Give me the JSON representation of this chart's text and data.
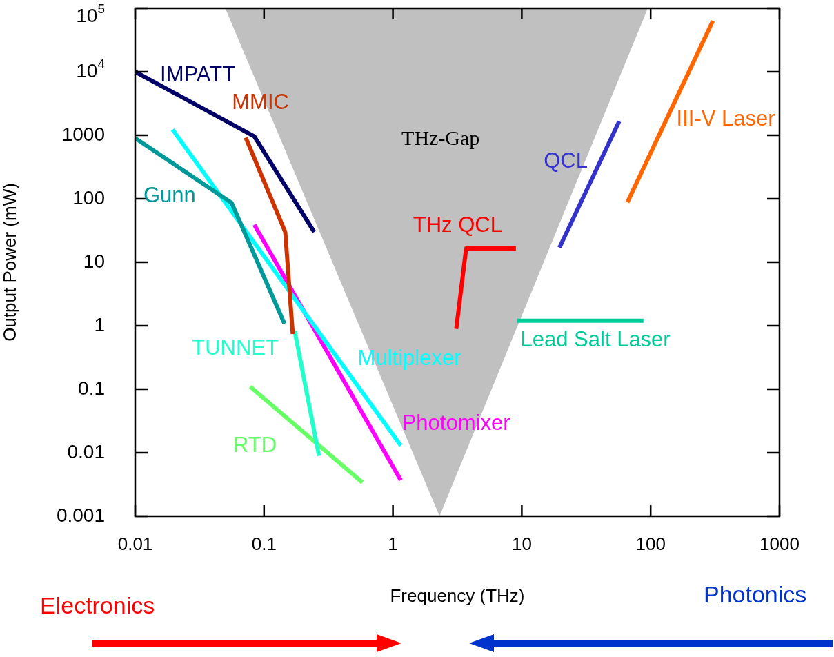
{
  "chart_data": {
    "type": "line",
    "xlabel": "Frequency (THz)",
    "ylabel": "Output Power (mW)",
    "log": "xy",
    "grid": false,
    "legend": false,
    "marker": "none",
    "line_style": "solid",
    "xlim": [
      0.01,
      1000
    ],
    "xticks": [
      0.01,
      0.1,
      1,
      10,
      100,
      1000
    ],
    "ylim": [
      0.001,
      100000
    ],
    "yticks": [
      0.001,
      0.01,
      0.1,
      1,
      10,
      100,
      1000,
      {
        "value": 10000,
        "label": "10$^{4}$"
      },
      {
        "value": 100000,
        "label": "10$^{5}$"
      }
    ],
    "series": [
      {
        "name": "THz-Gap",
        "type": "area",
        "color": "#c0c0c0",
        "x": [
          0.05,
          2.3,
          95
        ],
        "values": [
          100000,
          0.001,
          100000
        ]
      },
      {
        "name": "IMPATT",
        "type": "line",
        "color": "#000066",
        "x": [
          0.01,
          0.084,
          0.245
        ],
        "values": [
          10000,
          960,
          30
        ]
      },
      {
        "name": "MMIC",
        "type": "line",
        "color": "#cc3300",
        "x": [
          0.072,
          0.146,
          0.167
        ],
        "values": [
          920,
          30,
          0.74
        ]
      },
      {
        "name": "Gunn",
        "type": "line",
        "color": "#009999",
        "x": [
          0.01,
          0.056,
          0.144
        ],
        "values": [
          900,
          86,
          1.08
        ]
      },
      {
        "name": "Multiplexer",
        "type": "line",
        "color": "#00ffff",
        "x": [
          0.0195,
          1.15
        ],
        "values": [
          1230,
          0.013
        ]
      },
      {
        "name": "Photomixer",
        "type": "line",
        "color": "#ff00ff",
        "x": [
          0.084,
          1.15
        ],
        "values": [
          39,
          0.0037
        ]
      },
      {
        "name": "TUNNET",
        "type": "line",
        "color": "#22ffcc",
        "x": [
          0.173,
          0.267
        ],
        "values": [
          0.82,
          0.0089
        ]
      },
      {
        "name": "RTD",
        "type": "line",
        "color": "#66ff66",
        "x": [
          0.078,
          0.58
        ],
        "values": [
          0.11,
          0.0034
        ]
      },
      {
        "name": "THz QCL",
        "type": "line",
        "color": "#ff0000",
        "x": [
          3.1,
          3.7,
          9.0
        ],
        "values": [
          0.89,
          16.5,
          16.5
        ]
      },
      {
        "name": "Lead Salt Laser",
        "type": "line",
        "color": "#00cc99",
        "x": [
          9.2,
          88
        ],
        "values": [
          1.2,
          1.2
        ]
      },
      {
        "name": "QCL",
        "type": "line",
        "color": "#3333cc",
        "x": [
          19.6,
          57
        ],
        "values": [
          17,
          1660
        ]
      },
      {
        "name": "III-V Laser",
        "type": "line",
        "color": "#ff6600",
        "x": [
          66,
          304
        ],
        "values": [
          88,
          63400
        ]
      }
    ],
    "annotations": [
      "Electronics",
      "Photonics"
    ]
  }
}
